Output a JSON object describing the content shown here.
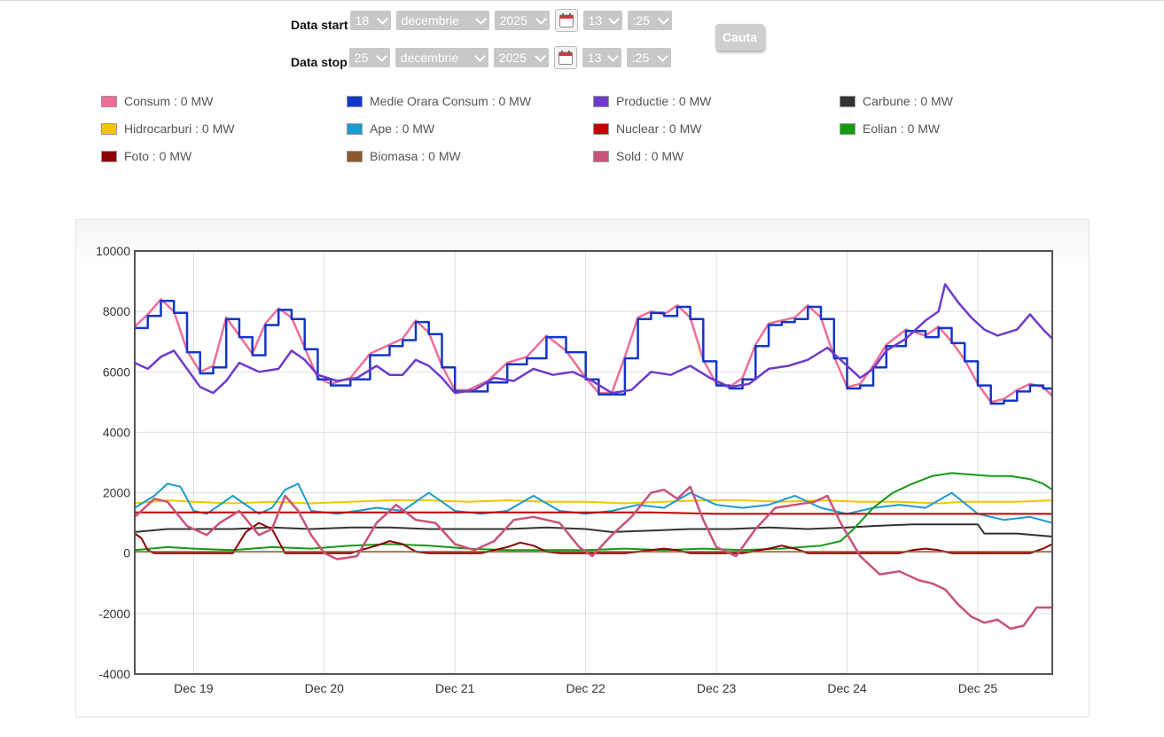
{
  "form": {
    "start": {
      "label": "Data start",
      "day": "18",
      "month": "decembrie",
      "year": "2025",
      "hour": "13",
      "minute": ":25"
    },
    "stop": {
      "label": "Data stop",
      "day": "25",
      "month": "decembrie",
      "year": "2025",
      "hour": "13",
      "minute": ":25"
    },
    "search_label": "Cauta",
    "icons": {
      "calendar": "calendar-icon",
      "dropdown": "chevron-down-icon"
    }
  },
  "legend": [
    {
      "label": "Consum : 0 MW",
      "color": "#f06e96"
    },
    {
      "label": "Medie Orara Consum : 0 MW",
      "color": "#1336c8"
    },
    {
      "label": "Productie : 0 MW",
      "color": "#6e3bcc"
    },
    {
      "label": "Carbune : 0 MW",
      "color": "#333333"
    },
    {
      "label": "Hidrocarburi : 0 MW",
      "color": "#f5c400"
    },
    {
      "label": "Ape : 0 MW",
      "color": "#1b9ad0"
    },
    {
      "label": "Nuclear : 0 MW",
      "color": "#c00000"
    },
    {
      "label": "Eolian : 0 MW",
      "color": "#159a15"
    },
    {
      "label": "Foto : 0 MW",
      "color": "#8b0000"
    },
    {
      "label": "Biomasa : 0 MW",
      "color": "#8b5a2b"
    },
    {
      "label": "Sold : 0 MW",
      "color": "#c8537a"
    }
  ],
  "chart_data": {
    "type": "line",
    "x_unit": "day (December 2025)",
    "xlim": [
      18.55,
      25.57
    ],
    "xticks": [
      19,
      20,
      21,
      22,
      23,
      24,
      25
    ],
    "xtick_labels": [
      "Dec 19",
      "Dec 20",
      "Dec 21",
      "Dec 22",
      "Dec 23",
      "Dec 24",
      "Dec 25"
    ],
    "ylim": [
      -4000,
      10000
    ],
    "yticks": [
      -4000,
      -2000,
      0,
      2000,
      4000,
      6000,
      8000,
      10000
    ],
    "grid": true,
    "series": [
      {
        "name": "Consum",
        "color": "#f06e96",
        "width": 2.5,
        "x": [
          18.55,
          18.65,
          18.75,
          18.85,
          18.95,
          19.05,
          19.15,
          19.25,
          19.35,
          19.45,
          19.55,
          19.65,
          19.75,
          19.85,
          19.95,
          20.05,
          20.2,
          20.35,
          20.5,
          20.6,
          20.7,
          20.8,
          20.9,
          21.0,
          21.1,
          21.25,
          21.4,
          21.55,
          21.7,
          21.85,
          22.0,
          22.1,
          22.2,
          22.3,
          22.4,
          22.5,
          22.6,
          22.7,
          22.8,
          22.9,
          23.0,
          23.1,
          23.2,
          23.3,
          23.4,
          23.5,
          23.6,
          23.7,
          23.8,
          23.9,
          24.0,
          24.1,
          24.2,
          24.3,
          24.45,
          24.6,
          24.7,
          24.8,
          24.9,
          25.0,
          25.1,
          25.2,
          25.3,
          25.4,
          25.5,
          25.57
        ],
        "y": [
          7500,
          7900,
          8400,
          8000,
          6700,
          6000,
          6200,
          7800,
          7200,
          6600,
          7600,
          8100,
          7800,
          6800,
          5800,
          5600,
          5800,
          6600,
          6900,
          7100,
          7700,
          7300,
          6200,
          5400,
          5400,
          5700,
          6300,
          6500,
          7200,
          6700,
          5800,
          5300,
          5300,
          6500,
          7800,
          8000,
          7900,
          8200,
          7800,
          6400,
          5600,
          5500,
          5800,
          6900,
          7600,
          7700,
          7800,
          8200,
          7800,
          6500,
          5500,
          5600,
          6200,
          6900,
          7400,
          7200,
          7500,
          7000,
          6400,
          5600,
          5000,
          5100,
          5400,
          5600,
          5500,
          5200
        ]
      },
      {
        "name": "Medie Orara Consum",
        "color": "#1336c8",
        "width": 2.5,
        "step": true,
        "x": [
          18.55,
          18.65,
          18.75,
          18.85,
          18.95,
          19.05,
          19.15,
          19.25,
          19.35,
          19.45,
          19.55,
          19.65,
          19.75,
          19.85,
          19.95,
          20.05,
          20.2,
          20.35,
          20.5,
          20.6,
          20.7,
          20.8,
          20.9,
          21.0,
          21.1,
          21.25,
          21.4,
          21.55,
          21.7,
          21.85,
          22.0,
          22.1,
          22.2,
          22.3,
          22.4,
          22.5,
          22.6,
          22.7,
          22.8,
          22.9,
          23.0,
          23.1,
          23.2,
          23.3,
          23.4,
          23.5,
          23.6,
          23.7,
          23.8,
          23.9,
          24.0,
          24.1,
          24.2,
          24.3,
          24.45,
          24.6,
          24.7,
          24.8,
          24.9,
          25.0,
          25.1,
          25.2,
          25.3,
          25.4,
          25.5,
          25.57
        ],
        "y": [
          7450,
          7850,
          8350,
          7950,
          6650,
          5950,
          6150,
          7750,
          7150,
          6550,
          7550,
          8050,
          7750,
          6750,
          5750,
          5550,
          5750,
          6550,
          6850,
          7050,
          7650,
          7250,
          6150,
          5350,
          5350,
          5650,
          6250,
          6450,
          7150,
          6650,
          5750,
          5250,
          5250,
          6450,
          7750,
          7950,
          7850,
          8150,
          7750,
          6350,
          5550,
          5450,
          5750,
          6850,
          7550,
          7650,
          7750,
          8150,
          7750,
          6450,
          5450,
          5550,
          6150,
          6850,
          7350,
          7150,
          7450,
          6950,
          6350,
          5550,
          4950,
          5050,
          5350,
          5550,
          5450,
          5150
        ]
      },
      {
        "name": "Productie",
        "color": "#6e3bcc",
        "width": 2.5,
        "x": [
          18.55,
          18.65,
          18.75,
          18.85,
          18.95,
          19.05,
          19.15,
          19.25,
          19.35,
          19.5,
          19.65,
          19.75,
          19.85,
          19.95,
          20.1,
          20.25,
          20.4,
          20.5,
          20.6,
          20.7,
          20.8,
          20.9,
          21.0,
          21.15,
          21.3,
          21.45,
          21.6,
          21.75,
          21.9,
          22.05,
          22.2,
          22.35,
          22.5,
          22.65,
          22.8,
          22.95,
          23.1,
          23.25,
          23.4,
          23.55,
          23.7,
          23.85,
          24.0,
          24.1,
          24.2,
          24.3,
          24.45,
          24.6,
          24.7,
          24.75,
          24.85,
          24.95,
          25.05,
          25.15,
          25.3,
          25.4,
          25.5,
          25.57
        ],
        "y": [
          6300,
          6100,
          6500,
          6700,
          6100,
          5500,
          5300,
          5700,
          6300,
          6000,
          6100,
          6700,
          6400,
          5900,
          5700,
          5800,
          6200,
          5900,
          5900,
          6400,
          6200,
          5800,
          5300,
          5400,
          5800,
          5700,
          6100,
          5900,
          6000,
          5700,
          5300,
          5400,
          6000,
          5900,
          6200,
          5800,
          5500,
          5600,
          6100,
          6200,
          6400,
          6800,
          6200,
          5800,
          6100,
          6700,
          7100,
          7700,
          8000,
          8900,
          8300,
          7800,
          7400,
          7200,
          7400,
          7900,
          7400,
          7100
        ]
      },
      {
        "name": "Carbune",
        "color": "#333333",
        "width": 2,
        "x": [
          18.55,
          18.8,
          19.0,
          19.3,
          19.6,
          19.9,
          20.2,
          20.5,
          20.8,
          21.1,
          21.4,
          21.7,
          22.0,
          22.2,
          22.5,
          22.8,
          23.1,
          23.4,
          23.7,
          24.0,
          24.2,
          24.5,
          24.8,
          25.0,
          25.05,
          25.3,
          25.57
        ],
        "y": [
          700,
          800,
          800,
          800,
          850,
          800,
          850,
          850,
          800,
          800,
          800,
          850,
          800,
          700,
          750,
          800,
          800,
          850,
          800,
          850,
          900,
          950,
          950,
          950,
          650,
          650,
          550
        ]
      },
      {
        "name": "Hidrocarburi",
        "color": "#f5c400",
        "width": 2,
        "x": [
          18.55,
          18.8,
          19.0,
          19.3,
          19.6,
          19.9,
          20.2,
          20.5,
          20.8,
          21.1,
          21.4,
          21.7,
          22.0,
          22.3,
          22.6,
          22.9,
          23.2,
          23.5,
          23.8,
          24.1,
          24.4,
          24.7,
          24.9,
          25.1,
          25.3,
          25.57
        ],
        "y": [
          1650,
          1750,
          1700,
          1650,
          1700,
          1650,
          1700,
          1750,
          1750,
          1700,
          1750,
          1700,
          1700,
          1650,
          1700,
          1750,
          1750,
          1700,
          1750,
          1700,
          1700,
          1650,
          1700,
          1700,
          1700,
          1750
        ]
      },
      {
        "name": "Ape",
        "color": "#1b9ad0",
        "width": 2,
        "x": [
          18.55,
          18.7,
          18.8,
          18.9,
          19.0,
          19.1,
          19.3,
          19.5,
          19.6,
          19.7,
          19.8,
          19.9,
          20.1,
          20.4,
          20.6,
          20.8,
          21.0,
          21.2,
          21.4,
          21.6,
          21.8,
          22.0,
          22.2,
          22.4,
          22.6,
          22.8,
          23.0,
          23.2,
          23.4,
          23.6,
          23.8,
          24.0,
          24.2,
          24.4,
          24.6,
          24.8,
          25.0,
          25.2,
          25.4,
          25.57
        ],
        "y": [
          1500,
          1900,
          2300,
          2200,
          1400,
          1300,
          1900,
          1300,
          1500,
          2100,
          2300,
          1400,
          1300,
          1500,
          1400,
          2000,
          1400,
          1300,
          1400,
          1900,
          1400,
          1300,
          1400,
          1600,
          1500,
          2000,
          1600,
          1500,
          1600,
          1900,
          1500,
          1300,
          1500,
          1600,
          1500,
          2000,
          1300,
          1100,
          1200,
          1000
        ]
      },
      {
        "name": "Nuclear",
        "color": "#c00000",
        "width": 2,
        "x": [
          18.55,
          19.0,
          19.5,
          20.0,
          20.5,
          21.0,
          21.5,
          22.0,
          22.5,
          23.0,
          23.5,
          24.0,
          24.5,
          25.0,
          25.57
        ],
        "y": [
          1350,
          1350,
          1350,
          1350,
          1350,
          1350,
          1350,
          1350,
          1350,
          1300,
          1300,
          1300,
          1300,
          1300,
          1300
        ]
      },
      {
        "name": "Eolian",
        "color": "#159a15",
        "width": 2,
        "x": [
          18.55,
          18.8,
          19.0,
          19.3,
          19.6,
          19.9,
          20.2,
          20.5,
          20.8,
          21.1,
          21.4,
          21.7,
          22.0,
          22.3,
          22.6,
          22.9,
          23.2,
          23.5,
          23.8,
          23.95,
          24.05,
          24.2,
          24.35,
          24.5,
          24.65,
          24.8,
          24.95,
          25.1,
          25.25,
          25.4,
          25.5,
          25.57
        ],
        "y": [
          100,
          200,
          150,
          100,
          200,
          150,
          250,
          300,
          250,
          150,
          100,
          100,
          100,
          150,
          100,
          150,
          100,
          150,
          250,
          400,
          800,
          1500,
          2000,
          2300,
          2550,
          2650,
          2600,
          2550,
          2550,
          2450,
          2300,
          2100
        ]
      },
      {
        "name": "Foto",
        "color": "#8b0000",
        "width": 2,
        "x": [
          18.55,
          18.6,
          18.65,
          18.7,
          18.8,
          19.0,
          19.3,
          19.4,
          19.5,
          19.6,
          19.7,
          19.8,
          20.2,
          20.4,
          20.5,
          20.6,
          20.7,
          20.8,
          21.2,
          21.4,
          21.5,
          21.6,
          21.7,
          21.8,
          22.3,
          22.5,
          22.6,
          22.7,
          22.8,
          23.2,
          23.4,
          23.5,
          23.6,
          23.7,
          23.8,
          24.1,
          24.4,
          24.5,
          24.6,
          24.7,
          24.8,
          25.2,
          25.4,
          25.5,
          25.57
        ],
        "y": [
          650,
          500,
          100,
          0,
          0,
          0,
          0,
          700,
          1000,
          800,
          0,
          0,
          0,
          250,
          400,
          300,
          50,
          0,
          0,
          200,
          350,
          250,
          50,
          0,
          0,
          100,
          150,
          100,
          0,
          0,
          150,
          250,
          150,
          0,
          0,
          0,
          0,
          100,
          150,
          100,
          0,
          0,
          0,
          150,
          300
        ]
      },
      {
        "name": "Biomasa",
        "color": "#8b5a2b",
        "width": 1.5,
        "x": [
          18.55,
          19.5,
          20.5,
          21.5,
          22.5,
          23.5,
          24.5,
          25.57
        ],
        "y": [
          50,
          50,
          50,
          50,
          50,
          50,
          50,
          50
        ]
      },
      {
        "name": "Sold",
        "color": "#c8537a",
        "width": 2.5,
        "x": [
          18.55,
          18.7,
          18.8,
          18.95,
          19.1,
          19.2,
          19.35,
          19.5,
          19.6,
          19.7,
          19.8,
          19.9,
          20.0,
          20.1,
          20.25,
          20.4,
          20.55,
          20.7,
          20.85,
          21.0,
          21.15,
          21.3,
          21.45,
          21.6,
          21.8,
          21.95,
          22.05,
          22.2,
          22.35,
          22.5,
          22.6,
          22.7,
          22.8,
          22.9,
          23.0,
          23.15,
          23.3,
          23.45,
          23.6,
          23.75,
          23.85,
          23.95,
          24.1,
          24.25,
          24.4,
          24.55,
          24.65,
          24.75,
          24.85,
          24.95,
          25.05,
          25.15,
          25.25,
          25.35,
          25.45,
          25.57
        ],
        "y": [
          1200,
          1800,
          1700,
          900,
          600,
          1000,
          1400,
          600,
          800,
          1900,
          1400,
          600,
          0,
          -200,
          -100,
          1000,
          1600,
          1100,
          1000,
          300,
          100,
          400,
          1100,
          1200,
          1000,
          200,
          -100,
          600,
          1200,
          2000,
          2100,
          1800,
          2200,
          1100,
          200,
          -100,
          800,
          1500,
          1600,
          1700,
          1900,
          1000,
          -100,
          -700,
          -600,
          -900,
          -1000,
          -1200,
          -1700,
          -2100,
          -2300,
          -2200,
          -2500,
          -2400,
          -1800,
          -1800
        ]
      }
    ]
  }
}
